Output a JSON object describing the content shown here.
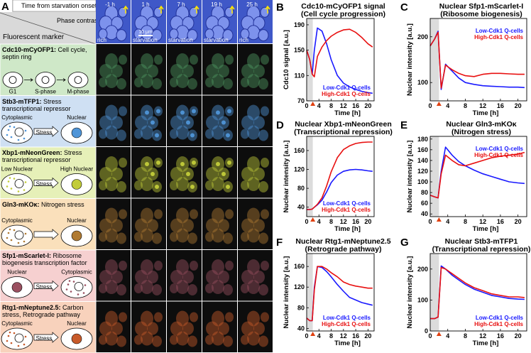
{
  "panel_a": {
    "label": "A",
    "time_header": "Time from starvation onset",
    "phase_header": "Phase contrast",
    "marker_header": "Fluorescent marker",
    "times": [
      "-1 h",
      "1 h",
      "7 h",
      "19 h",
      "25 h"
    ],
    "conditions": [
      "rich",
      "starvation",
      "starvation",
      "starvation",
      "rich"
    ],
    "scale_bar": "10 μm",
    "markers": [
      {
        "name": "Cdc10-mCyOFP1:",
        "description": "Cell cycle, septin ring",
        "states": [
          "G1",
          "S-phase",
          "M-phase"
        ]
      },
      {
        "name": "Stb3-mTFP1:",
        "description": "Stress transcriptional repressor",
        "states": [
          "Cytoplasmic",
          "Nuclear"
        ],
        "arrow": "Stress"
      },
      {
        "name": "Xbp1-mNeonGreen:",
        "description": "Stress transcriptional repressor",
        "states": [
          "Low Nuclear",
          "High Nuclear"
        ],
        "arrow": "Stress"
      },
      {
        "name": "Gln3-mKOκ:",
        "description": "Nitrogen stress",
        "states": [
          "Cytoplasmic",
          "Nuclear"
        ]
      },
      {
        "name": "Sfp1-mScarlet-I:",
        "description": "Ribosome biogenesis transcription factor",
        "states": [
          "Nuclear",
          "Cytoplasmic"
        ],
        "arrow": "Stress"
      },
      {
        "name": "Rtg1-mNeptune2.5:",
        "description": "Carbon stress, Retrograde pathway",
        "states": [
          "Cytoplasmic",
          "Nuclear"
        ],
        "arrow": "Stress"
      }
    ]
  },
  "chart_data": [
    {
      "type": "line",
      "panel": "B",
      "title": "Cdc10-mCyOFP1 signal",
      "subtitle": "(Cell cycle progression)",
      "x_label": "Time [h]",
      "y_label": "Cdc10 signal [a.u.]",
      "x": [
        0,
        1,
        1.8,
        2.5,
        3.5,
        5,
        6.5,
        8,
        10,
        12,
        14,
        16,
        18,
        20,
        21.5
      ],
      "xlim": [
        0,
        22
      ],
      "xticks": [
        0,
        4,
        8,
        12,
        16,
        20
      ],
      "ylim": [
        70,
        200
      ],
      "yticks": [
        70,
        110,
        150,
        190
      ],
      "shaded_region": [
        0,
        2
      ],
      "arrow_x": 2,
      "legend": "lower right",
      "series": [
        {
          "name": "Low-Cdk1 Q-cells",
          "color": "#1a1aff",
          "values": [
            150,
            135,
            112,
            150,
            185,
            180,
            160,
            135,
            110,
            98,
            92,
            88,
            85,
            83,
            82
          ]
        },
        {
          "name": "High-Cdk1 Q-cells",
          "color": "#e81010",
          "values": [
            150,
            135,
            112,
            108,
            140,
            155,
            165,
            172,
            178,
            182,
            183,
            178,
            170,
            160,
            155
          ]
        }
      ]
    },
    {
      "type": "line",
      "panel": "C",
      "title": "Nuclear Sfp1-mScarlet-I",
      "subtitle": "(Ribosome biogenesis)",
      "x_label": "Time [h]",
      "y_label": "Nuclear intensity [a.u.]",
      "x": [
        0,
        1,
        1.8,
        2.5,
        3.5,
        5,
        6.5,
        8,
        10,
        12,
        14,
        16,
        18,
        20,
        21.5
      ],
      "xlim": [
        0,
        22
      ],
      "xticks": [
        0,
        4,
        8,
        12,
        16,
        20
      ],
      "ylim": [
        60,
        240
      ],
      "yticks": [
        100,
        200
      ],
      "shaded_region": [
        0,
        2
      ],
      "arrow_x": 2,
      "legend": "upper right",
      "series": [
        {
          "name": "Low-Cdk1 Q-cells",
          "color": "#1a1aff",
          "values": [
            180,
            195,
            212,
            85,
            140,
            125,
            110,
            100,
            96,
            93,
            92,
            91,
            90,
            90,
            89
          ]
        },
        {
          "name": "High-Cdk1 Q-cells",
          "color": "#e81010",
          "values": [
            180,
            195,
            210,
            88,
            138,
            128,
            120,
            115,
            113,
            118,
            120,
            120,
            119,
            118,
            118
          ]
        }
      ]
    },
    {
      "type": "line",
      "panel": "D",
      "title": "Nuclear Xbp1-mNeonGreen",
      "subtitle": "(Transcriptional repression)",
      "x_label": "Time [h]",
      "y_label": "Nuclear intensity [a.u.]",
      "x": [
        0,
        1,
        1.8,
        2.5,
        3.5,
        5,
        6.5,
        8,
        10,
        12,
        14,
        16,
        18,
        20,
        21.5
      ],
      "xlim": [
        0,
        22
      ],
      "xticks": [
        0,
        4,
        8,
        12,
        16,
        20
      ],
      "ylim": [
        20,
        190
      ],
      "yticks": [
        40,
        80,
        120,
        160
      ],
      "shaded_region": [
        0,
        2
      ],
      "arrow_x": 2,
      "legend": "lower right",
      "series": [
        {
          "name": "Low-Cdk1 Q-cells",
          "color": "#1a1aff",
          "values": [
            35,
            35,
            36,
            40,
            45,
            55,
            72,
            92,
            108,
            116,
            119,
            120,
            119,
            117,
            116
          ]
        },
        {
          "name": "High-Cdk1 Q-cells",
          "color": "#e81010",
          "values": [
            35,
            35,
            36,
            40,
            46,
            60,
            85,
            115,
            145,
            162,
            170,
            175,
            177,
            178,
            178
          ]
        }
      ]
    },
    {
      "type": "line",
      "panel": "E",
      "title": "Nuclear Gln3-mKOκ",
      "subtitle": "(Nitrogen stress)",
      "x_label": "Time [h]",
      "y_label": "Nuclear intensity [a.u.]",
      "x": [
        0,
        1,
        1.8,
        2.5,
        3.5,
        5,
        6.5,
        8,
        10,
        12,
        14,
        16,
        18,
        20,
        21.5
      ],
      "xlim": [
        0,
        22
      ],
      "xticks": [
        0,
        4,
        8,
        12,
        16,
        20
      ],
      "ylim": [
        35,
        185
      ],
      "yticks": [
        40,
        60,
        80,
        100,
        120,
        140,
        160,
        180
      ],
      "shaded_region": [
        0,
        2
      ],
      "arrow_x": 2,
      "legend": "upper right",
      "series": [
        {
          "name": "Low-Cdk1 Q-cells",
          "color": "#1a1aff",
          "values": [
            75,
            72,
            70,
            120,
            165,
            150,
            138,
            130,
            122,
            115,
            110,
            105,
            100,
            98,
            97
          ]
        },
        {
          "name": "High-Cdk1 Q-cells",
          "color": "#e81010",
          "values": [
            75,
            72,
            70,
            115,
            150,
            140,
            132,
            130,
            135,
            140,
            145,
            148,
            150,
            152,
            155
          ]
        }
      ]
    },
    {
      "type": "line",
      "panel": "F",
      "title": "Nuclear Rtg1-mNeptune2.5",
      "subtitle": "(Retrograde pathway)",
      "x_label": "Time [h]",
      "y_label": "Nuclear intensity [a.u.]",
      "x": [
        0,
        1,
        1.8,
        2.5,
        3.5,
        5,
        6.5,
        8,
        10,
        12,
        14,
        16,
        18,
        20,
        21.5
      ],
      "xlim": [
        0,
        22
      ],
      "xticks": [
        0,
        4,
        8,
        12,
        16,
        20
      ],
      "ylim": [
        35,
        185
      ],
      "yticks": [
        40,
        80,
        120,
        160
      ],
      "shaded_region": [
        0,
        2
      ],
      "arrow_x": 2,
      "legend": "lower right",
      "series": [
        {
          "name": "Low-Cdk1 Q-cells",
          "color": "#1a1aff",
          "values": [
            60,
            55,
            55,
            120,
            160,
            158,
            150,
            140,
            125,
            112,
            100,
            95,
            90,
            87,
            85
          ]
        },
        {
          "name": "High-Cdk1 Q-cells",
          "color": "#e81010",
          "values": [
            60,
            55,
            55,
            115,
            160,
            160,
            155,
            148,
            140,
            130,
            125,
            122,
            120,
            118,
            118
          ]
        }
      ]
    },
    {
      "type": "line",
      "panel": "G",
      "title": "Nuclear Stb3-mTFP1",
      "subtitle": "(Transcriptional repression)",
      "x_label": "Time [h]",
      "y_label": "Nuclear intensity [a.u.]",
      "x": [
        0,
        1,
        1.8,
        2.5,
        3.5,
        5,
        6.5,
        8,
        10,
        12,
        14,
        16,
        18,
        20,
        21.5
      ],
      "xlim": [
        0,
        22
      ],
      "xticks": [
        0,
        4,
        8,
        12,
        16,
        20
      ],
      "ylim": [
        0,
        250
      ],
      "yticks": [
        0,
        100,
        200
      ],
      "shaded_region": [
        0,
        2
      ],
      "arrow_x": 2,
      "legend": "lower right",
      "series": [
        {
          "name": "Low-Cdk1 Q-cells",
          "color": "#1a1aff",
          "values": [
            40,
            40,
            45,
            210,
            200,
            180,
            165,
            150,
            135,
            125,
            115,
            110,
            105,
            103,
            102
          ]
        },
        {
          "name": "High-Cdk1 Q-cells",
          "color": "#e81010",
          "values": [
            40,
            40,
            45,
            205,
            200,
            185,
            170,
            155,
            140,
            130,
            120,
            115,
            110,
            110,
            108
          ]
        }
      ]
    }
  ]
}
